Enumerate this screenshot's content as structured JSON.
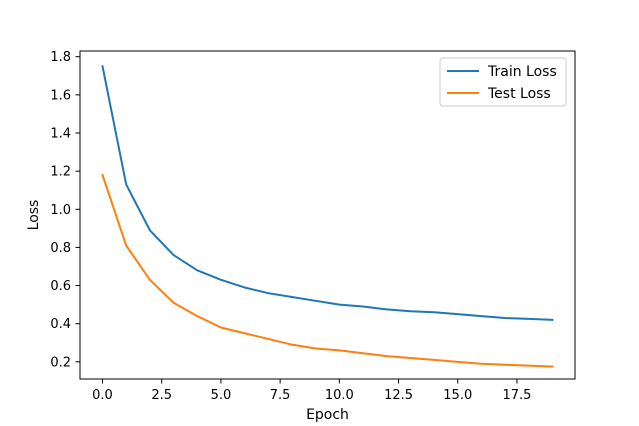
{
  "chart_data": {
    "type": "line",
    "xlabel": "Epoch",
    "ylabel": "Loss",
    "x": [
      0,
      1,
      2,
      3,
      4,
      5,
      6,
      7,
      8,
      9,
      10,
      11,
      12,
      13,
      14,
      15,
      16,
      17,
      18,
      19
    ],
    "xlim": [
      -0.95,
      19.95
    ],
    "ylim": [
      0.11,
      1.83
    ],
    "xticks": [
      0.0,
      2.5,
      5.0,
      7.5,
      10.0,
      12.5,
      15.0,
      17.5
    ],
    "xtick_labels": [
      "0.0",
      "2.5",
      "5.0",
      "7.5",
      "10.0",
      "12.5",
      "15.0",
      "17.5"
    ],
    "yticks": [
      0.2,
      0.4,
      0.6,
      0.8,
      1.0,
      1.2,
      1.4,
      1.6,
      1.8
    ],
    "ytick_labels": [
      "0.2",
      "0.4",
      "0.6",
      "0.8",
      "1.0",
      "1.2",
      "1.4",
      "1.6",
      "1.8"
    ],
    "grid": false,
    "legend_position": "top-right",
    "series": [
      {
        "name": "Train Loss",
        "color": "#1f77b4",
        "values": [
          1.75,
          1.13,
          0.89,
          0.76,
          0.68,
          0.63,
          0.59,
          0.56,
          0.54,
          0.52,
          0.5,
          0.49,
          0.475,
          0.465,
          0.46,
          0.45,
          0.44,
          0.43,
          0.425,
          0.42
        ]
      },
      {
        "name": "Test Loss",
        "color": "#ff7f0e",
        "values": [
          1.18,
          0.81,
          0.63,
          0.51,
          0.44,
          0.38,
          0.35,
          0.32,
          0.29,
          0.27,
          0.26,
          0.245,
          0.23,
          0.22,
          0.21,
          0.2,
          0.19,
          0.185,
          0.18,
          0.175
        ]
      }
    ]
  }
}
